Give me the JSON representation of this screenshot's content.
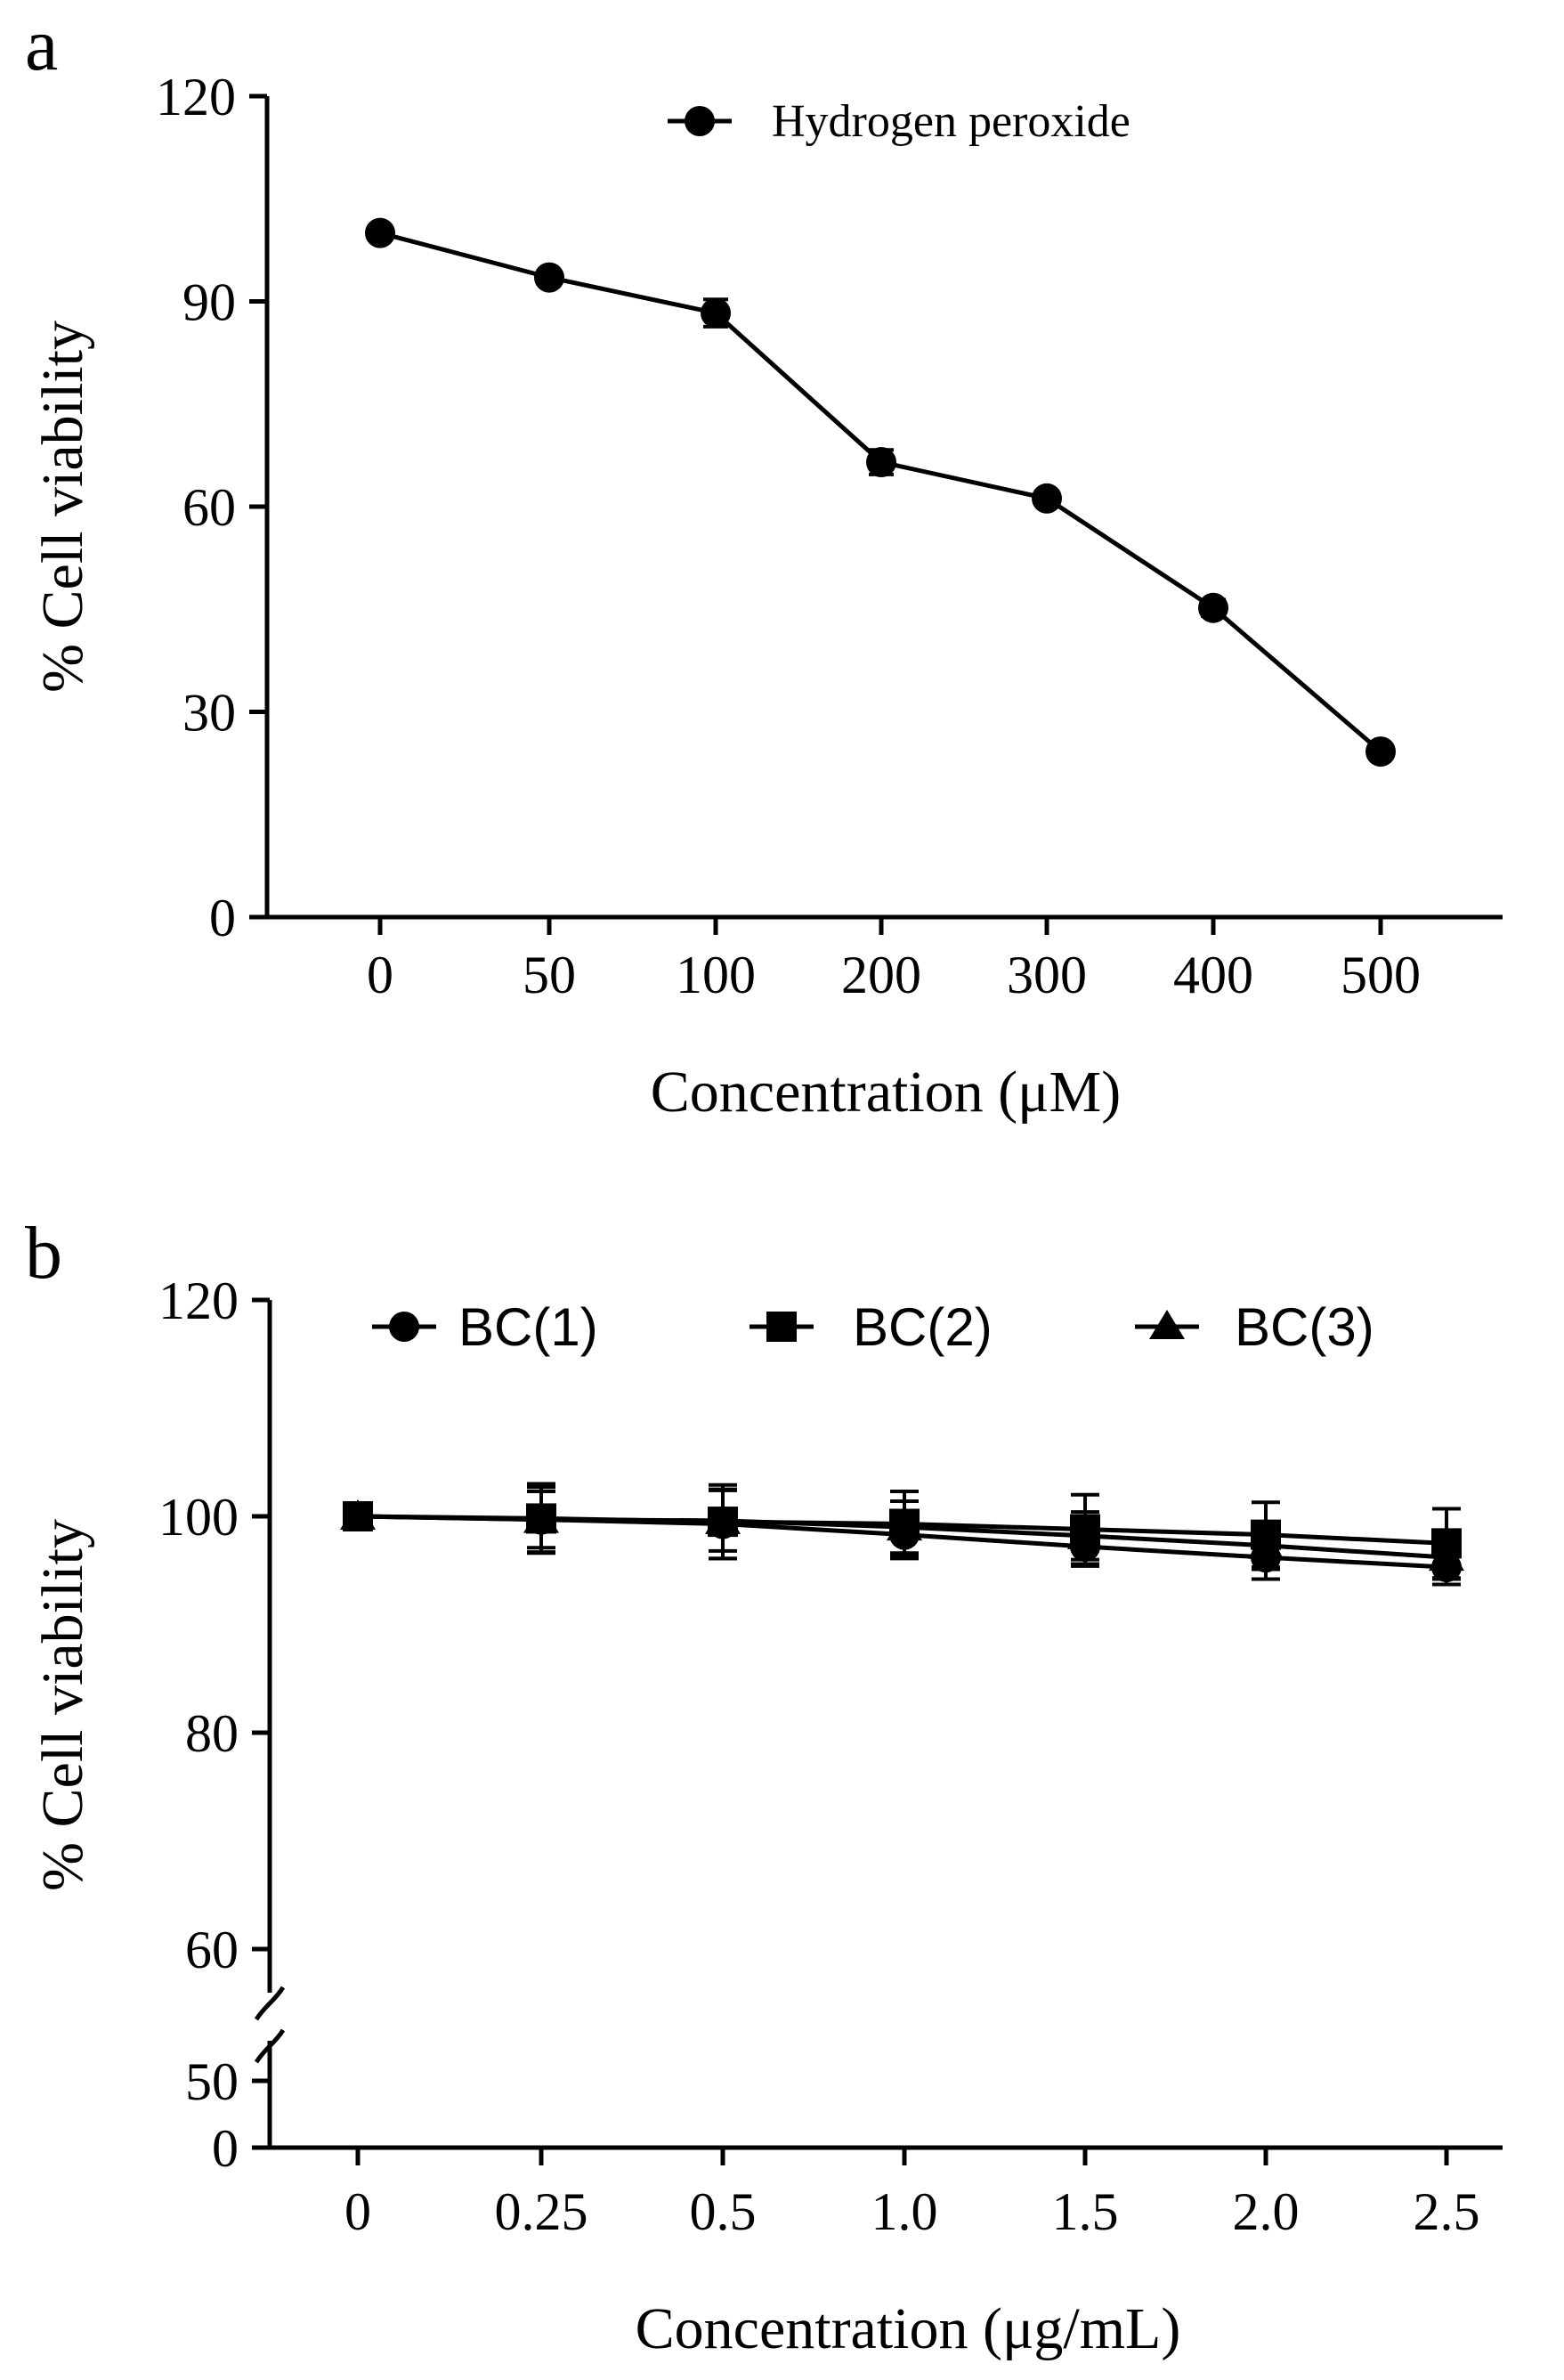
{
  "colors": {
    "ink": "#000000",
    "background": "#ffffff"
  },
  "chart_data": [
    {
      "panel": "a",
      "type": "line",
      "categories": [
        "0",
        "50",
        "100",
        "200",
        "300",
        "400",
        "500"
      ],
      "series": [
        {
          "name": "Hydrogen peroxide",
          "marker": "circle",
          "values": [
            100,
            93.5,
            88.3,
            66.5,
            61.2,
            45.2,
            24.2
          ],
          "errors": [
            0.8,
            0.8,
            2.0,
            1.8,
            0.8,
            1.2,
            0.5
          ]
        }
      ],
      "xlabel": "Concentration (μM)",
      "ylabel": "% Cell viability",
      "ylim": [
        0,
        120
      ],
      "yticks": [
        "0",
        "30",
        "60",
        "90",
        "120"
      ],
      "legend": "top-center",
      "grid": false
    },
    {
      "panel": "b",
      "type": "line",
      "categories": [
        "0",
        "0.25",
        "0.5",
        "1.0",
        "1.5",
        "2.0",
        "2.5"
      ],
      "series": [
        {
          "name": "BC(1)",
          "marker": "circle",
          "values": [
            100,
            99.7,
            99.3,
            98.3,
            97.2,
            96.2,
            95.3
          ],
          "errors": [
            0.4,
            3.0,
            3.2,
            2.2,
            1.8,
            2.0,
            1.6
          ]
        },
        {
          "name": "BC(2)",
          "marker": "square",
          "values": [
            100,
            99.8,
            99.5,
            99.3,
            98.8,
            98.3,
            97.5
          ],
          "errors": [
            0.4,
            3.2,
            3.4,
            3.0,
            3.2,
            3.0,
            3.2
          ]
        },
        {
          "name": "BC(3)",
          "marker": "triangle",
          "values": [
            100,
            99.7,
            99.6,
            99.0,
            98.2,
            97.3,
            96.2
          ],
          "errors": [
            0.4,
            2.6,
            2.8,
            2.4,
            2.2,
            2.2,
            2.0
          ]
        }
      ],
      "xlabel": "Concentration (μg/mL)",
      "ylabel": "% Cell viability",
      "y_axis_break": [
        50,
        55
      ],
      "ylim_lower": [
        0,
        50
      ],
      "ylim_upper": [
        55,
        120
      ],
      "yticks": [
        "0",
        "50",
        "60",
        "80",
        "100",
        "120"
      ],
      "legend": "top",
      "grid": false
    }
  ]
}
